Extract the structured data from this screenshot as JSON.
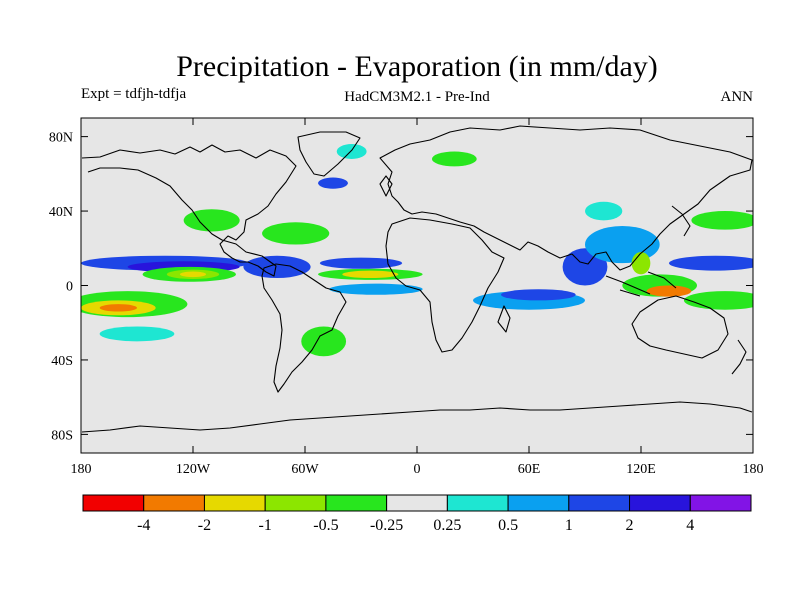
{
  "chart_data": {
    "type": "heatmap",
    "title": "Precipitation - Evaporation (in mm/day)",
    "left_label": "Expt = tdfjh-tdfja",
    "center_label": "HadCM3M2.1 - Pre-Ind",
    "right_label": "ANN",
    "x_range": [
      -180,
      180
    ],
    "y_range": [
      -90,
      90
    ],
    "x_ticks": [
      {
        "value": -180,
        "label": "180"
      },
      {
        "value": -120,
        "label": "120W"
      },
      {
        "value": -60,
        "label": "60W"
      },
      {
        "value": 0,
        "label": "0"
      },
      {
        "value": 60,
        "label": "60E"
      },
      {
        "value": 120,
        "label": "120E"
      },
      {
        "value": 180,
        "label": "180"
      }
    ],
    "y_ticks": [
      {
        "value": 80,
        "label": "80N"
      },
      {
        "value": 40,
        "label": "40N"
      },
      {
        "value": 0,
        "label": "0"
      },
      {
        "value": -40,
        "label": "40S"
      },
      {
        "value": -80,
        "label": "80S"
      }
    ],
    "colorbar": {
      "colors": [
        "#f20000",
        "#f27a00",
        "#e6d900",
        "#8ce600",
        "#28e61e",
        "#e6e6e6",
        "#1ee6d2",
        "#0aa0f0",
        "#1e46e6",
        "#2814dc",
        "#8214e6"
      ],
      "labels": [
        "-4",
        "-2",
        "-1",
        "-0.5",
        "-0.25",
        "0.25",
        "0.5",
        "1",
        "2",
        "4"
      ]
    },
    "colors": {
      "background": "#e6e6e6",
      "land_outline": "#000000"
    },
    "regions": [
      {
        "lon": -135,
        "lat": 12,
        "rlon": 45,
        "rlat": 4,
        "level": 8
      },
      {
        "lon": -125,
        "lat": 10,
        "rlon": 30,
        "rlat": 3,
        "level": 9
      },
      {
        "lon": -122,
        "lat": 6,
        "rlon": 25,
        "rlat": 4,
        "level": 4
      },
      {
        "lon": -120,
        "lat": 6,
        "rlon": 14,
        "rlat": 2.5,
        "level": 3
      },
      {
        "lon": -120,
        "lat": 6,
        "rlon": 7,
        "rlat": 1.5,
        "level": 2
      },
      {
        "lon": -155,
        "lat": -10,
        "rlon": 32,
        "rlat": 7,
        "level": 4
      },
      {
        "lon": -160,
        "lat": -12,
        "rlon": 20,
        "rlat": 4,
        "level": 2
      },
      {
        "lon": -160,
        "lat": -12,
        "rlon": 10,
        "rlat": 2,
        "level": 1
      },
      {
        "lon": -150,
        "lat": -26,
        "rlon": 20,
        "rlat": 4,
        "level": 6
      },
      {
        "lon": -25,
        "lat": 6,
        "rlon": 28,
        "rlat": 3,
        "level": 4
      },
      {
        "lon": -25,
        "lat": 6,
        "rlon": 15,
        "rlat": 2,
        "level": 2
      },
      {
        "lon": -30,
        "lat": 12,
        "rlon": 22,
        "rlat": 3,
        "level": 8
      },
      {
        "lon": -22,
        "lat": -2,
        "rlon": 25,
        "rlat": 3,
        "level": 7
      },
      {
        "lon": -75,
        "lat": 10,
        "rlon": 18,
        "rlat": 6,
        "level": 8
      },
      {
        "lon": -65,
        "lat": 28,
        "rlon": 18,
        "rlat": 6,
        "level": 4
      },
      {
        "lon": -50,
        "lat": -30,
        "rlon": 12,
        "rlat": 8,
        "level": 4
      },
      {
        "lon": -75,
        "lat": -5,
        "rlon": 10,
        "rlat": 8,
        "level": 5
      },
      {
        "lon": 60,
        "lat": -8,
        "rlon": 30,
        "rlat": 5,
        "level": 7
      },
      {
        "lon": 65,
        "lat": -5,
        "rlon": 20,
        "rlat": 3,
        "level": 8
      },
      {
        "lon": 90,
        "lat": 10,
        "rlon": 12,
        "rlat": 10,
        "level": 8
      },
      {
        "lon": 110,
        "lat": 22,
        "rlon": 20,
        "rlat": 10,
        "level": 7
      },
      {
        "lon": 130,
        "lat": 0,
        "rlon": 20,
        "rlat": 6,
        "level": 4
      },
      {
        "lon": 135,
        "lat": -3,
        "rlon": 12,
        "rlat": 3,
        "level": 1
      },
      {
        "lon": 120,
        "lat": 12,
        "rlon": 5,
        "rlat": 6,
        "level": 3
      },
      {
        "lon": 160,
        "lat": 12,
        "rlon": 25,
        "rlat": 4,
        "level": 8
      },
      {
        "lon": 165,
        "lat": -8,
        "rlon": 22,
        "rlat": 5,
        "level": 4
      },
      {
        "lon": 165,
        "lat": 35,
        "rlon": 18,
        "rlat": 5,
        "level": 4
      },
      {
        "lon": 20,
        "lat": 68,
        "rlon": 12,
        "rlat": 4,
        "level": 4
      },
      {
        "lon": -35,
        "lat": 72,
        "rlon": 8,
        "rlat": 4,
        "level": 6
      },
      {
        "lon": -110,
        "lat": 35,
        "rlon": 15,
        "rlat": 6,
        "level": 4
      },
      {
        "lon": -45,
        "lat": 55,
        "rlon": 8,
        "rlat": 3,
        "level": 8
      },
      {
        "lon": 100,
        "lat": 40,
        "rlon": 10,
        "rlat": 5,
        "level": 6
      }
    ]
  }
}
